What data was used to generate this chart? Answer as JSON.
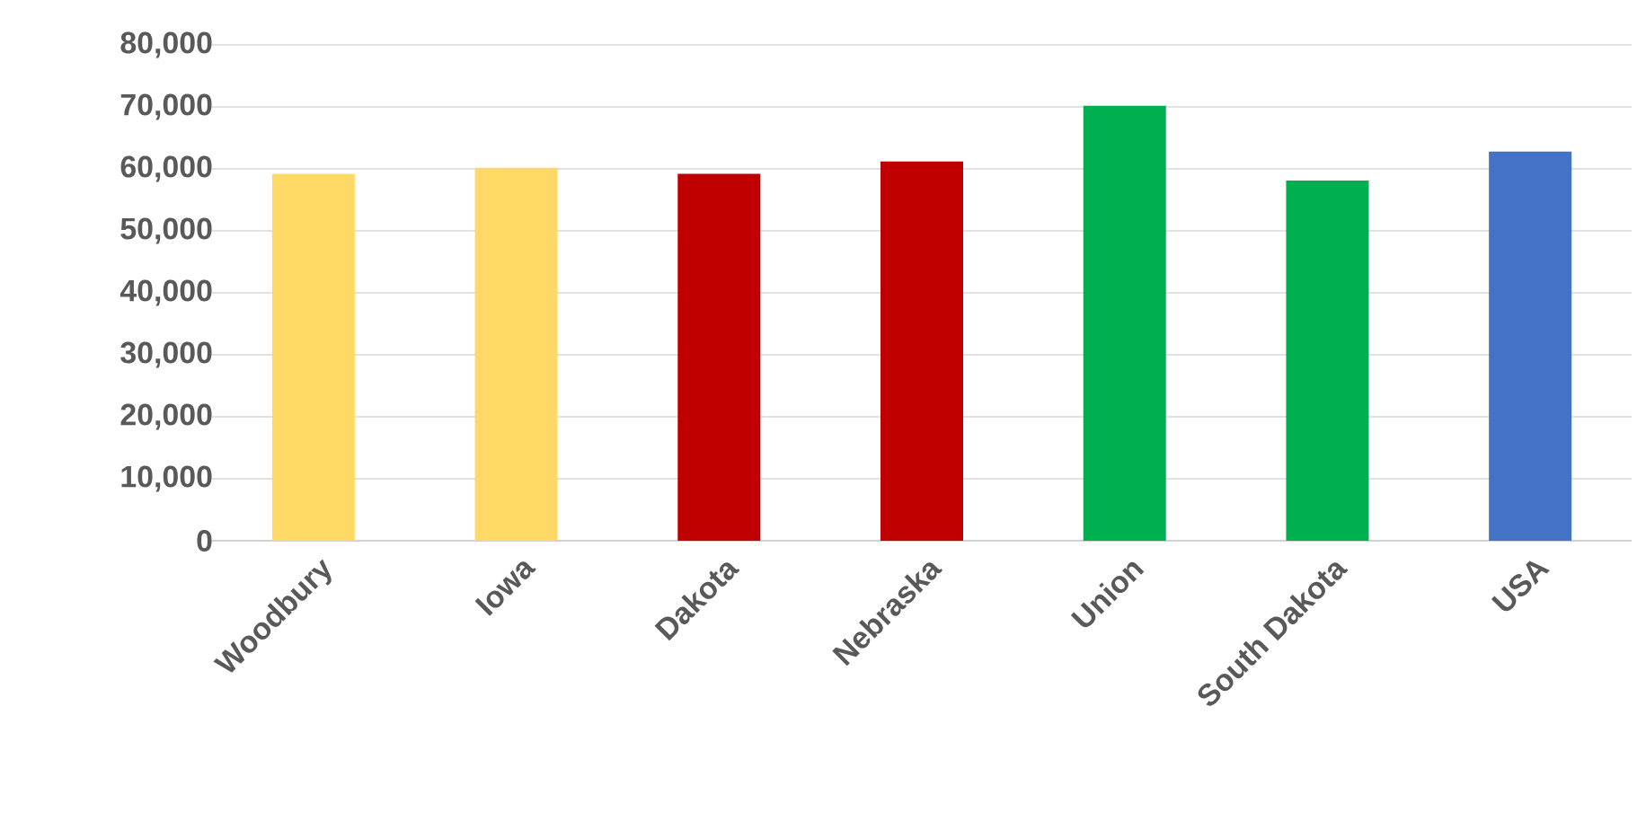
{
  "chart_data": {
    "type": "bar",
    "categories": [
      "Woodbury",
      "Iowa",
      "Dakota",
      "Nebraska",
      "Union",
      "South Dakota",
      "USA"
    ],
    "values": [
      59200,
      60200,
      59200,
      61200,
      70200,
      58100,
      62800
    ],
    "colors": [
      "#ffd966",
      "#ffd966",
      "#c00000",
      "#c00000",
      "#00b050",
      "#00b050",
      "#4472c4"
    ],
    "ylim": [
      0,
      80000
    ],
    "yticks": [
      {
        "value": 0,
        "label": "0"
      },
      {
        "value": 10000,
        "label": "10,000"
      },
      {
        "value": 20000,
        "label": "20,000"
      },
      {
        "value": 30000,
        "label": "30,000"
      },
      {
        "value": 40000,
        "label": "40,000"
      },
      {
        "value": 50000,
        "label": "50,000"
      },
      {
        "value": 60000,
        "label": "60,000"
      },
      {
        "value": 70000,
        "label": "70,000"
      },
      {
        "value": 80000,
        "label": "80,000"
      }
    ],
    "grid": "y"
  }
}
